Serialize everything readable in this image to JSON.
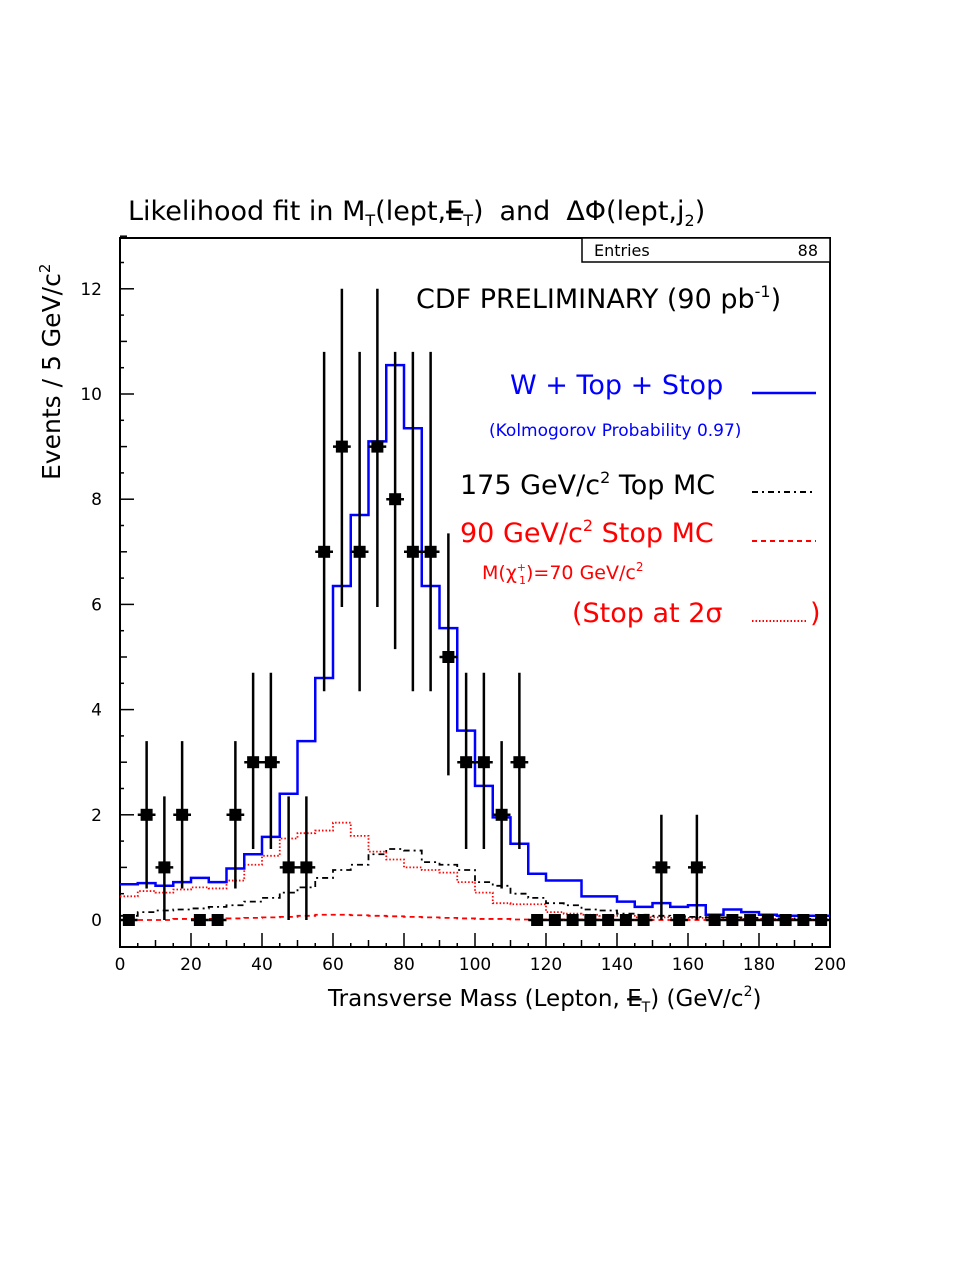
{
  "colors": {
    "background": "#ffffff",
    "axis": "#000000",
    "fit_total": "#0000ff",
    "top_mc": "#000000",
    "stop_mc": "#ff0000",
    "stop_2sigma": "#ff0000",
    "data": "#000000"
  },
  "chart_data": {
    "type": "histogram",
    "title": {
      "prefix": "Likelihood fit in ",
      "mt": "M",
      "mt_sub": "T",
      "mt_args": "(lept,",
      "met": "E",
      "met_sub": "T",
      "close": ")",
      "and": "and",
      "dphi": "ΔΦ(lept,j",
      "dphi_sub": "2",
      "dphi_close": ")"
    },
    "xlabel": {
      "prefix": "Transverse Mass (Lepton, ",
      "met": "E",
      "met_sub": "T",
      "suffix": ")  (GeV/c",
      "sup": "2",
      "end": ")"
    },
    "ylabel": {
      "text": "Events / 5 GeV/c",
      "sup": "2"
    },
    "xlim": [
      0,
      200
    ],
    "ylim": [
      0,
      13
    ],
    "x_ticks": [
      "0",
      "20",
      "40",
      "60",
      "80",
      "100",
      "120",
      "140",
      "160",
      "180",
      "200"
    ],
    "y_ticks": [
      "0",
      "2",
      "4",
      "6",
      "8",
      "10",
      "12"
    ],
    "stats_box": {
      "label": "Entries",
      "value": "88"
    },
    "annotations": {
      "prelim": {
        "text": "CDF PRELIMINARY (90 pb",
        "sup": "-1",
        "end": ")"
      },
      "fit_label": "W + Top + Stop",
      "kolmogorov": "(Kolmogorov Probability  0.97)",
      "top_label": {
        "prefix": "175 GeV/c",
        "sup": "2",
        "suffix": " Top MC"
      },
      "stop_label": {
        "prefix": "90 GeV/c",
        "sup": "2",
        "suffix": " Stop MC"
      },
      "chargino": {
        "prefix": "M(",
        "chi": "χ",
        "chi_sup": "+",
        "chi_sub": "1",
        "mid": ")=70 GeV/c",
        "sup": "2"
      },
      "stop2sigma": {
        "text": "(Stop at 2σ ",
        "end": ")"
      }
    },
    "bin_edges": [
      0,
      5,
      10,
      15,
      20,
      25,
      30,
      35,
      40,
      45,
      50,
      55,
      60,
      65,
      70,
      75,
      80,
      85,
      90,
      95,
      100,
      105,
      110,
      115,
      120,
      125,
      130,
      135,
      140,
      145,
      150,
      155,
      160,
      165,
      170,
      175,
      180,
      185,
      190,
      195,
      200
    ],
    "series": [
      {
        "name": "W + Top + Stop",
        "style": "solid",
        "color": "#0000ff",
        "values": [
          0.68,
          0.7,
          0.65,
          0.72,
          0.8,
          0.72,
          0.98,
          1.25,
          1.58,
          2.4,
          3.4,
          4.6,
          6.35,
          7.7,
          9.1,
          10.55,
          9.35,
          6.35,
          5.55,
          3.6,
          2.55,
          1.95,
          1.45,
          0.88,
          0.75,
          0.75,
          0.45,
          0.45,
          0.35,
          0.25,
          0.32,
          0.25,
          0.28,
          0.1,
          0.2,
          0.15,
          0.1,
          0.08,
          0.08,
          0.08
        ]
      },
      {
        "name": "175 GeV/c² Top MC",
        "style": "dashdot",
        "color": "#000000",
        "values": [
          0.08,
          0.15,
          0.18,
          0.2,
          0.22,
          0.25,
          0.28,
          0.35,
          0.42,
          0.52,
          0.62,
          0.8,
          0.95,
          1.05,
          1.25,
          1.35,
          1.32,
          1.1,
          1.05,
          0.95,
          0.72,
          0.65,
          0.5,
          0.42,
          0.32,
          0.28,
          0.2,
          0.18,
          0.12,
          0.1,
          0.08,
          0.07,
          0.06,
          0.05,
          0.05,
          0.04,
          0.03,
          0.03,
          0.02,
          0.02
        ]
      },
      {
        "name": "90 GeV/c² Stop MC",
        "style": "dashed",
        "color": "#ff0000",
        "values": [
          0.0,
          0.0,
          0.0,
          0.02,
          0.02,
          0.02,
          0.03,
          0.04,
          0.05,
          0.06,
          0.08,
          0.1,
          0.1,
          0.09,
          0.08,
          0.07,
          0.06,
          0.05,
          0.04,
          0.03,
          0.02,
          0.02,
          0.01,
          0.01,
          0.01,
          0.01,
          0.01,
          0.0,
          0.0,
          0.0,
          0.0,
          0.0,
          0.0,
          0.0,
          0.0,
          0.0,
          0.0,
          0.0,
          0.0,
          0.0
        ]
      },
      {
        "name": "Stop at 2σ",
        "style": "dotted",
        "color": "#ff0000",
        "values": [
          0.45,
          0.55,
          0.52,
          0.58,
          0.62,
          0.6,
          0.75,
          1.05,
          1.22,
          1.55,
          1.65,
          1.7,
          1.85,
          1.6,
          1.3,
          1.15,
          1.0,
          0.95,
          0.9,
          0.72,
          0.52,
          0.32,
          0.3,
          0.3,
          0.15,
          0.12,
          0.1,
          0.08,
          0.08,
          0.05,
          0.05,
          0.04,
          0.04,
          0.03,
          0.03,
          0.02,
          0.02,
          0.02,
          0.01,
          0.01
        ]
      }
    ],
    "data_points": {
      "name": "Data",
      "x": [
        2.5,
        7.5,
        12.5,
        17.5,
        22.5,
        27.5,
        32.5,
        37.5,
        42.5,
        47.5,
        52.5,
        57.5,
        62.5,
        67.5,
        72.5,
        77.5,
        82.5,
        87.5,
        92.5,
        97.5,
        102.5,
        107.5,
        112.5,
        117.5,
        122.5,
        127.5,
        132.5,
        137.5,
        142.5,
        147.5,
        152.5,
        157.5,
        162.5,
        167.5,
        172.5,
        177.5,
        182.5,
        187.5,
        192.5,
        197.5
      ],
      "y": [
        0,
        2,
        1,
        2,
        0,
        0,
        2,
        3,
        3,
        1,
        1,
        7,
        9,
        7,
        9,
        8,
        7,
        7,
        5,
        3,
        3,
        2,
        3,
        0,
        0,
        0,
        0,
        0,
        0,
        0,
        1,
        0,
        1,
        0,
        0,
        0,
        0,
        0,
        0,
        0
      ],
      "y_low": [
        0,
        0.6,
        0,
        0.6,
        0,
        0,
        0.6,
        1.35,
        1.35,
        0,
        0,
        4.35,
        5.95,
        4.35,
        5.95,
        5.15,
        4.35,
        4.35,
        2.75,
        1.35,
        1.35,
        0.6,
        1.35,
        0,
        0,
        0,
        0,
        0,
        0,
        0,
        0,
        0,
        0,
        0,
        0,
        0,
        0,
        0,
        0,
        0
      ],
      "y_high": [
        0,
        3.4,
        2.35,
        3.4,
        0,
        0,
        3.4,
        4.7,
        4.7,
        2.35,
        2.35,
        10.8,
        12.0,
        10.8,
        12.0,
        10.8,
        10.8,
        10.8,
        7.35,
        4.7,
        4.7,
        3.4,
        4.7,
        0,
        0,
        0,
        0,
        0,
        0,
        0,
        2.0,
        0,
        2.0,
        0,
        0,
        0,
        0,
        0,
        0,
        0
      ]
    }
  }
}
